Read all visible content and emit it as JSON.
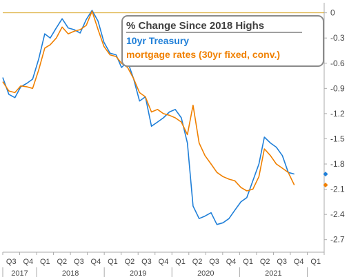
{
  "chart_data": {
    "type": "line",
    "title": "% Change Since 2018 Highs",
    "xlabel": "",
    "ylabel": "",
    "ylim": [
      -2.85,
      0.12
    ],
    "y_ticks": [
      0,
      -0.3,
      -0.6,
      -0.9,
      -1.2,
      -1.5,
      -1.8,
      -2.1,
      -2.4,
      -2.7
    ],
    "y_tick_labels": [
      "0",
      "-0.3",
      "-0.6",
      "-0.9",
      "-1.2",
      "-1.5",
      "-1.8",
      "-2.1",
      "-2.4",
      "-2.7"
    ],
    "x_quarter_labels": [
      "Q3",
      "Q4",
      "Q1",
      "Q2",
      "Q3",
      "Q4",
      "Q1",
      "Q2",
      "Q3",
      "Q4",
      "Q1",
      "Q2",
      "Q3",
      "Q4",
      "Q1",
      "Q2",
      "Q3",
      "Q4",
      "Q1"
    ],
    "x_year_labels": [
      "2017",
      "2018",
      "2019",
      "2020",
      "2021"
    ],
    "x_range": [
      "2017-07-01",
      "2022-01-01"
    ],
    "grid": false,
    "legend_position": "top-right",
    "reference_line": {
      "y": 0,
      "color": "#d4a017"
    },
    "series": [
      {
        "name": "10yr Treasury",
        "color": "#1f7fd8",
        "points": [
          [
            "2017-07-01",
            -0.77
          ],
          [
            "2017-08-01",
            -0.97
          ],
          [
            "2017-09-01",
            -1.01
          ],
          [
            "2017-10-01",
            -0.88
          ],
          [
            "2017-11-01",
            -0.84
          ],
          [
            "2017-12-01",
            -0.79
          ],
          [
            "2018-01-01",
            -0.55
          ],
          [
            "2018-02-01",
            -0.25
          ],
          [
            "2018-03-01",
            -0.3
          ],
          [
            "2018-04-01",
            -0.18
          ],
          [
            "2018-05-01",
            -0.07
          ],
          [
            "2018-06-01",
            -0.18
          ],
          [
            "2018-07-01",
            -0.2
          ],
          [
            "2018-08-01",
            -0.24
          ],
          [
            "2018-09-01",
            -0.08
          ],
          [
            "2018-10-01",
            0.03
          ],
          [
            "2018-11-01",
            -0.1
          ],
          [
            "2018-12-01",
            -0.35
          ],
          [
            "2019-01-01",
            -0.48
          ],
          [
            "2019-02-01",
            -0.5
          ],
          [
            "2019-03-01",
            -0.65
          ],
          [
            "2019-04-01",
            -0.58
          ],
          [
            "2019-05-01",
            -0.78
          ],
          [
            "2019-06-01",
            -1.05
          ],
          [
            "2019-07-01",
            -1.0
          ],
          [
            "2019-08-01",
            -1.35
          ],
          [
            "2019-09-01",
            -1.3
          ],
          [
            "2019-10-01",
            -1.25
          ],
          [
            "2019-11-01",
            -1.18
          ],
          [
            "2019-12-01",
            -1.15
          ],
          [
            "2020-01-01",
            -1.25
          ],
          [
            "2020-02-01",
            -1.55
          ],
          [
            "2020-03-01",
            -2.3
          ],
          [
            "2020-04-01",
            -2.45
          ],
          [
            "2020-05-01",
            -2.42
          ],
          [
            "2020-06-01",
            -2.38
          ],
          [
            "2020-07-01",
            -2.52
          ],
          [
            "2020-08-01",
            -2.5
          ],
          [
            "2020-09-01",
            -2.45
          ],
          [
            "2020-10-01",
            -2.35
          ],
          [
            "2020-11-01",
            -2.25
          ],
          [
            "2020-12-01",
            -2.2
          ],
          [
            "2021-01-01",
            -2.0
          ],
          [
            "2021-02-01",
            -1.8
          ],
          [
            "2021-03-01",
            -1.48
          ],
          [
            "2021-04-01",
            -1.55
          ],
          [
            "2021-05-01",
            -1.6
          ],
          [
            "2021-06-01",
            -1.7
          ],
          [
            "2021-07-01",
            -1.9
          ],
          [
            "2021-08-01",
            -1.92
          ]
        ]
      },
      {
        "name": "mortgage rates (30yr fixed, conv.)",
        "color": "#f08000",
        "points": [
          [
            "2017-07-01",
            -0.82
          ],
          [
            "2017-08-01",
            -0.93
          ],
          [
            "2017-09-01",
            -0.95
          ],
          [
            "2017-10-01",
            -0.87
          ],
          [
            "2017-11-01",
            -0.88
          ],
          [
            "2017-12-01",
            -0.9
          ],
          [
            "2018-01-01",
            -0.68
          ],
          [
            "2018-02-01",
            -0.42
          ],
          [
            "2018-03-01",
            -0.38
          ],
          [
            "2018-04-01",
            -0.3
          ],
          [
            "2018-05-01",
            -0.17
          ],
          [
            "2018-06-01",
            -0.25
          ],
          [
            "2018-07-01",
            -0.22
          ],
          [
            "2018-08-01",
            -0.2
          ],
          [
            "2018-09-01",
            -0.15
          ],
          [
            "2018-10-01",
            0.02
          ],
          [
            "2018-11-01",
            -0.2
          ],
          [
            "2018-12-01",
            -0.4
          ],
          [
            "2019-01-01",
            -0.5
          ],
          [
            "2019-02-01",
            -0.52
          ],
          [
            "2019-03-01",
            -0.6
          ],
          [
            "2019-04-01",
            -0.65
          ],
          [
            "2019-05-01",
            -0.78
          ],
          [
            "2019-06-01",
            -0.95
          ],
          [
            "2019-07-01",
            -1.0
          ],
          [
            "2019-08-01",
            -1.18
          ],
          [
            "2019-09-01",
            -1.15
          ],
          [
            "2019-10-01",
            -1.2
          ],
          [
            "2019-11-01",
            -1.22
          ],
          [
            "2019-12-01",
            -1.25
          ],
          [
            "2020-01-01",
            -1.3
          ],
          [
            "2020-02-01",
            -1.45
          ],
          [
            "2020-03-01",
            -1.1
          ],
          [
            "2020-04-01",
            -1.55
          ],
          [
            "2020-05-01",
            -1.7
          ],
          [
            "2020-06-01",
            -1.8
          ],
          [
            "2020-07-01",
            -1.9
          ],
          [
            "2020-08-01",
            -1.95
          ],
          [
            "2020-09-01",
            -1.98
          ],
          [
            "2020-10-01",
            -2.0
          ],
          [
            "2020-11-01",
            -2.08
          ],
          [
            "2020-12-01",
            -2.12
          ],
          [
            "2021-01-01",
            -2.1
          ],
          [
            "2021-02-01",
            -1.95
          ],
          [
            "2021-03-01",
            -1.62
          ],
          [
            "2021-04-01",
            -1.7
          ],
          [
            "2021-05-01",
            -1.8
          ],
          [
            "2021-06-01",
            -1.85
          ],
          [
            "2021-07-01",
            -1.9
          ],
          [
            "2021-08-01",
            -2.05
          ]
        ]
      }
    ]
  }
}
